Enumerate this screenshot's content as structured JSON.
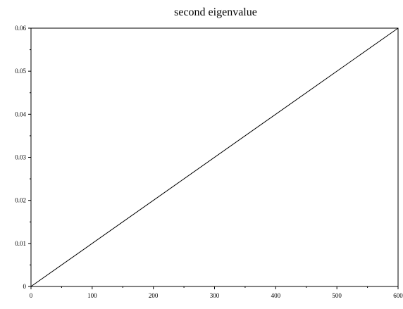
{
  "chart_data": {
    "type": "line",
    "title": "second eigenvalue",
    "xlabel": "",
    "ylabel": "",
    "xlim": [
      0,
      600
    ],
    "ylim": [
      0,
      0.06
    ],
    "x_ticks": [
      0,
      100,
      200,
      300,
      400,
      500,
      600
    ],
    "x_tick_labels": [
      "0",
      "100",
      "200",
      "300",
      "400",
      "500",
      "600"
    ],
    "y_ticks": [
      0,
      0.01,
      0.02,
      0.03,
      0.04,
      0.05,
      0.06
    ],
    "y_tick_labels": [
      "0",
      "0.01",
      "0.02",
      "0.03",
      "0.04",
      "0.05",
      "0.06"
    ],
    "grid": false,
    "legend": "none",
    "series": [
      {
        "x": [
          0,
          600
        ],
        "y": [
          0,
          0.06
        ],
        "color": "#000000"
      }
    ]
  }
}
